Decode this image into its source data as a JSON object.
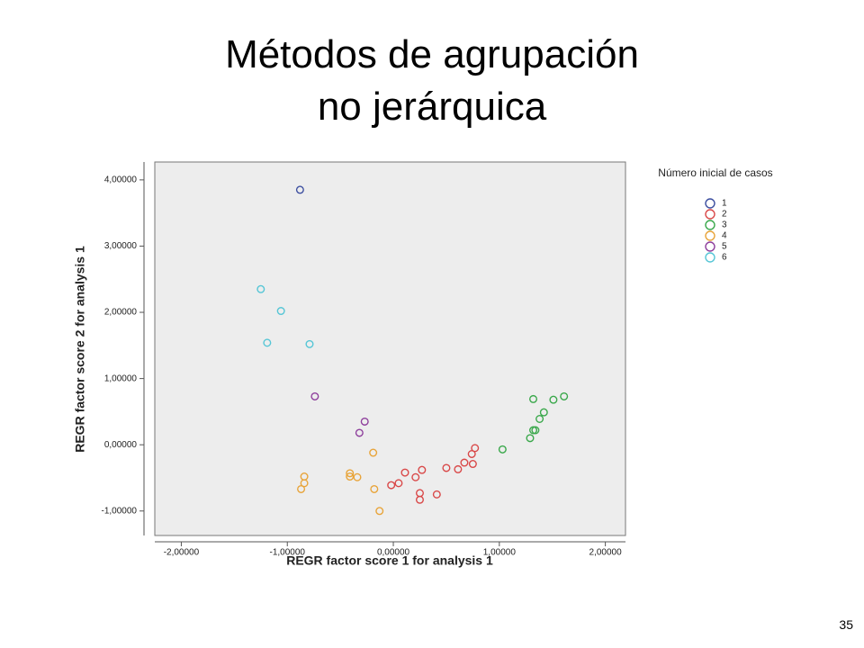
{
  "slide": {
    "title": "Métodos de agrupación no jerárquica",
    "page_number": 35
  },
  "chart_data": {
    "type": "scatter",
    "x_label": "REGR factor score   1 for analysis 1",
    "y_label": "REGR factor score   2 for analysis 1",
    "legend_title": "Número inicial de casos",
    "legend": "right",
    "xlim": [
      -2.25,
      2.19
    ],
    "ylim": [
      -1.37,
      4.27
    ],
    "xticks": [
      {
        "value": -2,
        "label": "-2,00000"
      },
      {
        "value": -1,
        "label": "-1,00000"
      },
      {
        "value": 0,
        "label": "0,00000"
      },
      {
        "value": 1,
        "label": "1,00000"
      },
      {
        "value": 2,
        "label": "2,00000"
      }
    ],
    "yticks": [
      {
        "value": -1,
        "label": "-1,00000"
      },
      {
        "value": 0,
        "label": "0,00000"
      },
      {
        "value": 1,
        "label": "1,00000"
      },
      {
        "value": 2,
        "label": "2,00000"
      },
      {
        "value": 3,
        "label": "3,00000"
      },
      {
        "value": 4,
        "label": "4,00000"
      }
    ],
    "series": [
      {
        "name": "1",
        "color": "#3d4fa0",
        "x": [
          -0.88
        ],
        "values": [
          3.85
        ]
      },
      {
        "name": "2",
        "color": "#d94848",
        "x": [
          -0.02,
          0.05,
          0.11,
          0.21,
          0.27,
          0.25,
          0.25,
          0.41,
          0.5,
          0.61,
          0.67,
          0.74,
          0.77,
          0.75
        ],
        "values": [
          -0.61,
          -0.58,
          -0.42,
          -0.49,
          -0.38,
          -0.73,
          -0.83,
          -0.75,
          -0.35,
          -0.37,
          -0.27,
          -0.14,
          -0.05,
          -0.29
        ]
      },
      {
        "name": "3",
        "color": "#3aa84b",
        "x": [
          1.03,
          1.29,
          1.32,
          1.34,
          1.38,
          1.42,
          1.32,
          1.51,
          1.61
        ],
        "values": [
          -0.07,
          0.1,
          0.22,
          0.22,
          0.39,
          0.49,
          0.69,
          0.68,
          0.73
        ]
      },
      {
        "name": "4",
        "color": "#e8a43a",
        "x": [
          -0.19,
          -0.84,
          -0.84,
          -0.87,
          -0.41,
          -0.41,
          -0.34,
          -0.18,
          -0.13
        ],
        "values": [
          -0.12,
          -0.48,
          -0.58,
          -0.67,
          -0.43,
          -0.48,
          -0.49,
          -0.67,
          -1.0
        ]
      },
      {
        "name": "5",
        "color": "#8e3f9c",
        "x": [
          -0.74,
          -0.27,
          -0.32
        ],
        "values": [
          0.73,
          0.35,
          0.18
        ]
      },
      {
        "name": "6",
        "color": "#56c6d6",
        "x": [
          -1.25,
          -1.06,
          -1.19,
          -0.79
        ],
        "values": [
          2.35,
          2.02,
          1.54,
          1.52
        ]
      }
    ]
  }
}
